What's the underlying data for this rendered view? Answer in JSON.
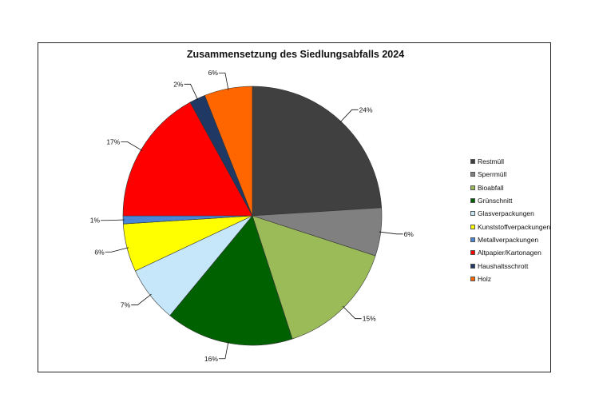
{
  "chart_data": {
    "type": "pie",
    "title": "Zusammensetzung des Siedlungsabfalls 2024",
    "categories": [
      "Restmüll",
      "Sperrmüll",
      "Bioabfall",
      "Grünschnitt",
      "Glasverpackungen",
      "Kunststoffverpackungen",
      "Metallverpackungen",
      "Altpapier/Kartonagen",
      "Haushaltsschrott",
      "Holz"
    ],
    "values": [
      24,
      6,
      15,
      16,
      7,
      6,
      1,
      17,
      2,
      6
    ],
    "labels": [
      "24%",
      "6%",
      "15%",
      "16%",
      "7%",
      "6%",
      "1%",
      "17%",
      "2%",
      "6%"
    ],
    "colors": [
      "#404040",
      "#808080",
      "#9bbb59",
      "#006100",
      "#c6e7fa",
      "#ffff00",
      "#4a86d8",
      "#ff0000",
      "#1f3864",
      "#ff6600"
    ],
    "legend_position": "right",
    "start_angle": "12 o'clock, clockwise"
  },
  "legend": {
    "items": [
      {
        "label": "Restmüll",
        "color": "#404040"
      },
      {
        "label": "Sperrmüll",
        "color": "#808080"
      },
      {
        "label": "Bioabfall",
        "color": "#9bbb59"
      },
      {
        "label": "Grünschnitt",
        "color": "#006100"
      },
      {
        "label": "Glasverpackungen",
        "color": "#c6e7fa"
      },
      {
        "label": "Kunststoffverpackungen",
        "color": "#ffff00"
      },
      {
        "label": "Metallverpackungen",
        "color": "#4a86d8"
      },
      {
        "label": "Altpapier/Kartonagen",
        "color": "#ff0000"
      },
      {
        "label": "Haushaltsschrott",
        "color": "#1f3864"
      },
      {
        "label": "Holz",
        "color": "#ff6600"
      }
    ]
  }
}
